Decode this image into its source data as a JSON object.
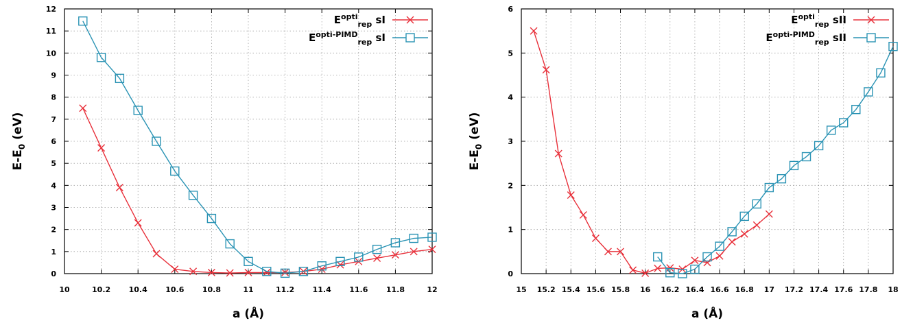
{
  "chart_data": [
    {
      "type": "line",
      "title": "",
      "xlabel_parts": {
        "main": "a (",
        "angstrom": "Å",
        "close": ")"
      },
      "ylabel_parts": {
        "main": "E-E",
        "sub": "0",
        "unit": " (eV)"
      },
      "xlim": [
        10,
        12
      ],
      "ylim": [
        0,
        12
      ],
      "xticks": [
        10,
        10.2,
        10.4,
        10.6,
        10.8,
        11,
        11.2,
        11.4,
        11.6,
        11.8,
        12
      ],
      "yticks": [
        0,
        1,
        2,
        3,
        4,
        5,
        6,
        7,
        8,
        9,
        10,
        11,
        12
      ],
      "grid": true,
      "legend_position": "top-right",
      "series": [
        {
          "name_parts": {
            "base": "E",
            "sup": "opti",
            "sub": "rep",
            "tail": " sI"
          },
          "color": "#e8303a",
          "marker": "x",
          "x": [
            10.1,
            10.2,
            10.3,
            10.4,
            10.5,
            10.6,
            10.7,
            10.8,
            10.9,
            11.0,
            11.1,
            11.2,
            11.3,
            11.4,
            11.5,
            11.6,
            11.7,
            11.8,
            11.9,
            12.0
          ],
          "y": [
            7.5,
            5.7,
            3.9,
            2.3,
            0.9,
            0.2,
            0.1,
            0.05,
            0.03,
            0.05,
            0.05,
            0.05,
            0.1,
            0.2,
            0.4,
            0.55,
            0.7,
            0.85,
            1.0,
            1.1
          ]
        },
        {
          "name_parts": {
            "base": "E",
            "sup": "opti-PIMD",
            "sub": "rep",
            "tail": " sI"
          },
          "color": "#2a93b4",
          "marker": "square",
          "x": [
            10.1,
            10.2,
            10.3,
            10.4,
            10.5,
            10.6,
            10.7,
            10.8,
            10.9,
            11.0,
            11.1,
            11.2,
            11.3,
            11.4,
            11.5,
            11.6,
            11.7,
            11.8,
            11.9,
            12.0
          ],
          "y": [
            11.45,
            9.8,
            8.85,
            7.4,
            6.0,
            4.65,
            3.55,
            2.5,
            1.35,
            0.55,
            0.1,
            0.02,
            0.1,
            0.35,
            0.55,
            0.75,
            1.1,
            1.4,
            1.6,
            1.65
          ]
        }
      ]
    },
    {
      "type": "line",
      "title": "",
      "xlabel_parts": {
        "main": "a (",
        "angstrom": "Å",
        "close": ")"
      },
      "ylabel_parts": {
        "main": "E-E",
        "sub": "0",
        "unit": " (eV)"
      },
      "xlim": [
        15,
        18
      ],
      "ylim": [
        0,
        6
      ],
      "xticks": [
        15,
        15.2,
        15.4,
        15.6,
        15.8,
        16,
        16.2,
        16.4,
        16.6,
        16.8,
        17,
        17.2,
        17.4,
        17.6,
        17.8,
        18
      ],
      "yticks": [
        0,
        1,
        2,
        3,
        4,
        5,
        6
      ],
      "grid": true,
      "legend_position": "top-right",
      "series": [
        {
          "name_parts": {
            "base": "E",
            "sup": "opti",
            "sub": "rep",
            "tail": " sII"
          },
          "color": "#e8303a",
          "marker": "x",
          "x": [
            15.1,
            15.2,
            15.3,
            15.4,
            15.5,
            15.6,
            15.7,
            15.8,
            15.9,
            16.0,
            16.1,
            16.2,
            16.3,
            16.4,
            16.5,
            16.6,
            16.7,
            16.8,
            16.9,
            17.0
          ],
          "y": [
            5.5,
            4.62,
            2.72,
            1.78,
            1.33,
            0.8,
            0.5,
            0.5,
            0.08,
            0.01,
            0.12,
            0.13,
            0.1,
            0.3,
            0.25,
            0.4,
            0.72,
            0.9,
            1.1,
            1.35
          ]
        },
        {
          "name_parts": {
            "base": "E",
            "sup": "opti-PIMD",
            "sub": "rep",
            "tail": " sII"
          },
          "color": "#2a93b4",
          "marker": "square",
          "x": [
            16.1,
            16.2,
            16.3,
            16.4,
            16.5,
            16.6,
            16.7,
            16.8,
            16.9,
            17.0,
            17.1,
            17.2,
            17.3,
            17.4,
            17.5,
            17.6,
            17.7,
            17.8,
            17.9,
            18.0
          ],
          "y": [
            0.38,
            0.02,
            0.0,
            0.1,
            0.38,
            0.62,
            0.95,
            1.3,
            1.58,
            1.95,
            2.15,
            2.45,
            2.65,
            2.9,
            3.25,
            3.42,
            3.72,
            4.12,
            4.55,
            5.15
          ]
        }
      ]
    }
  ]
}
